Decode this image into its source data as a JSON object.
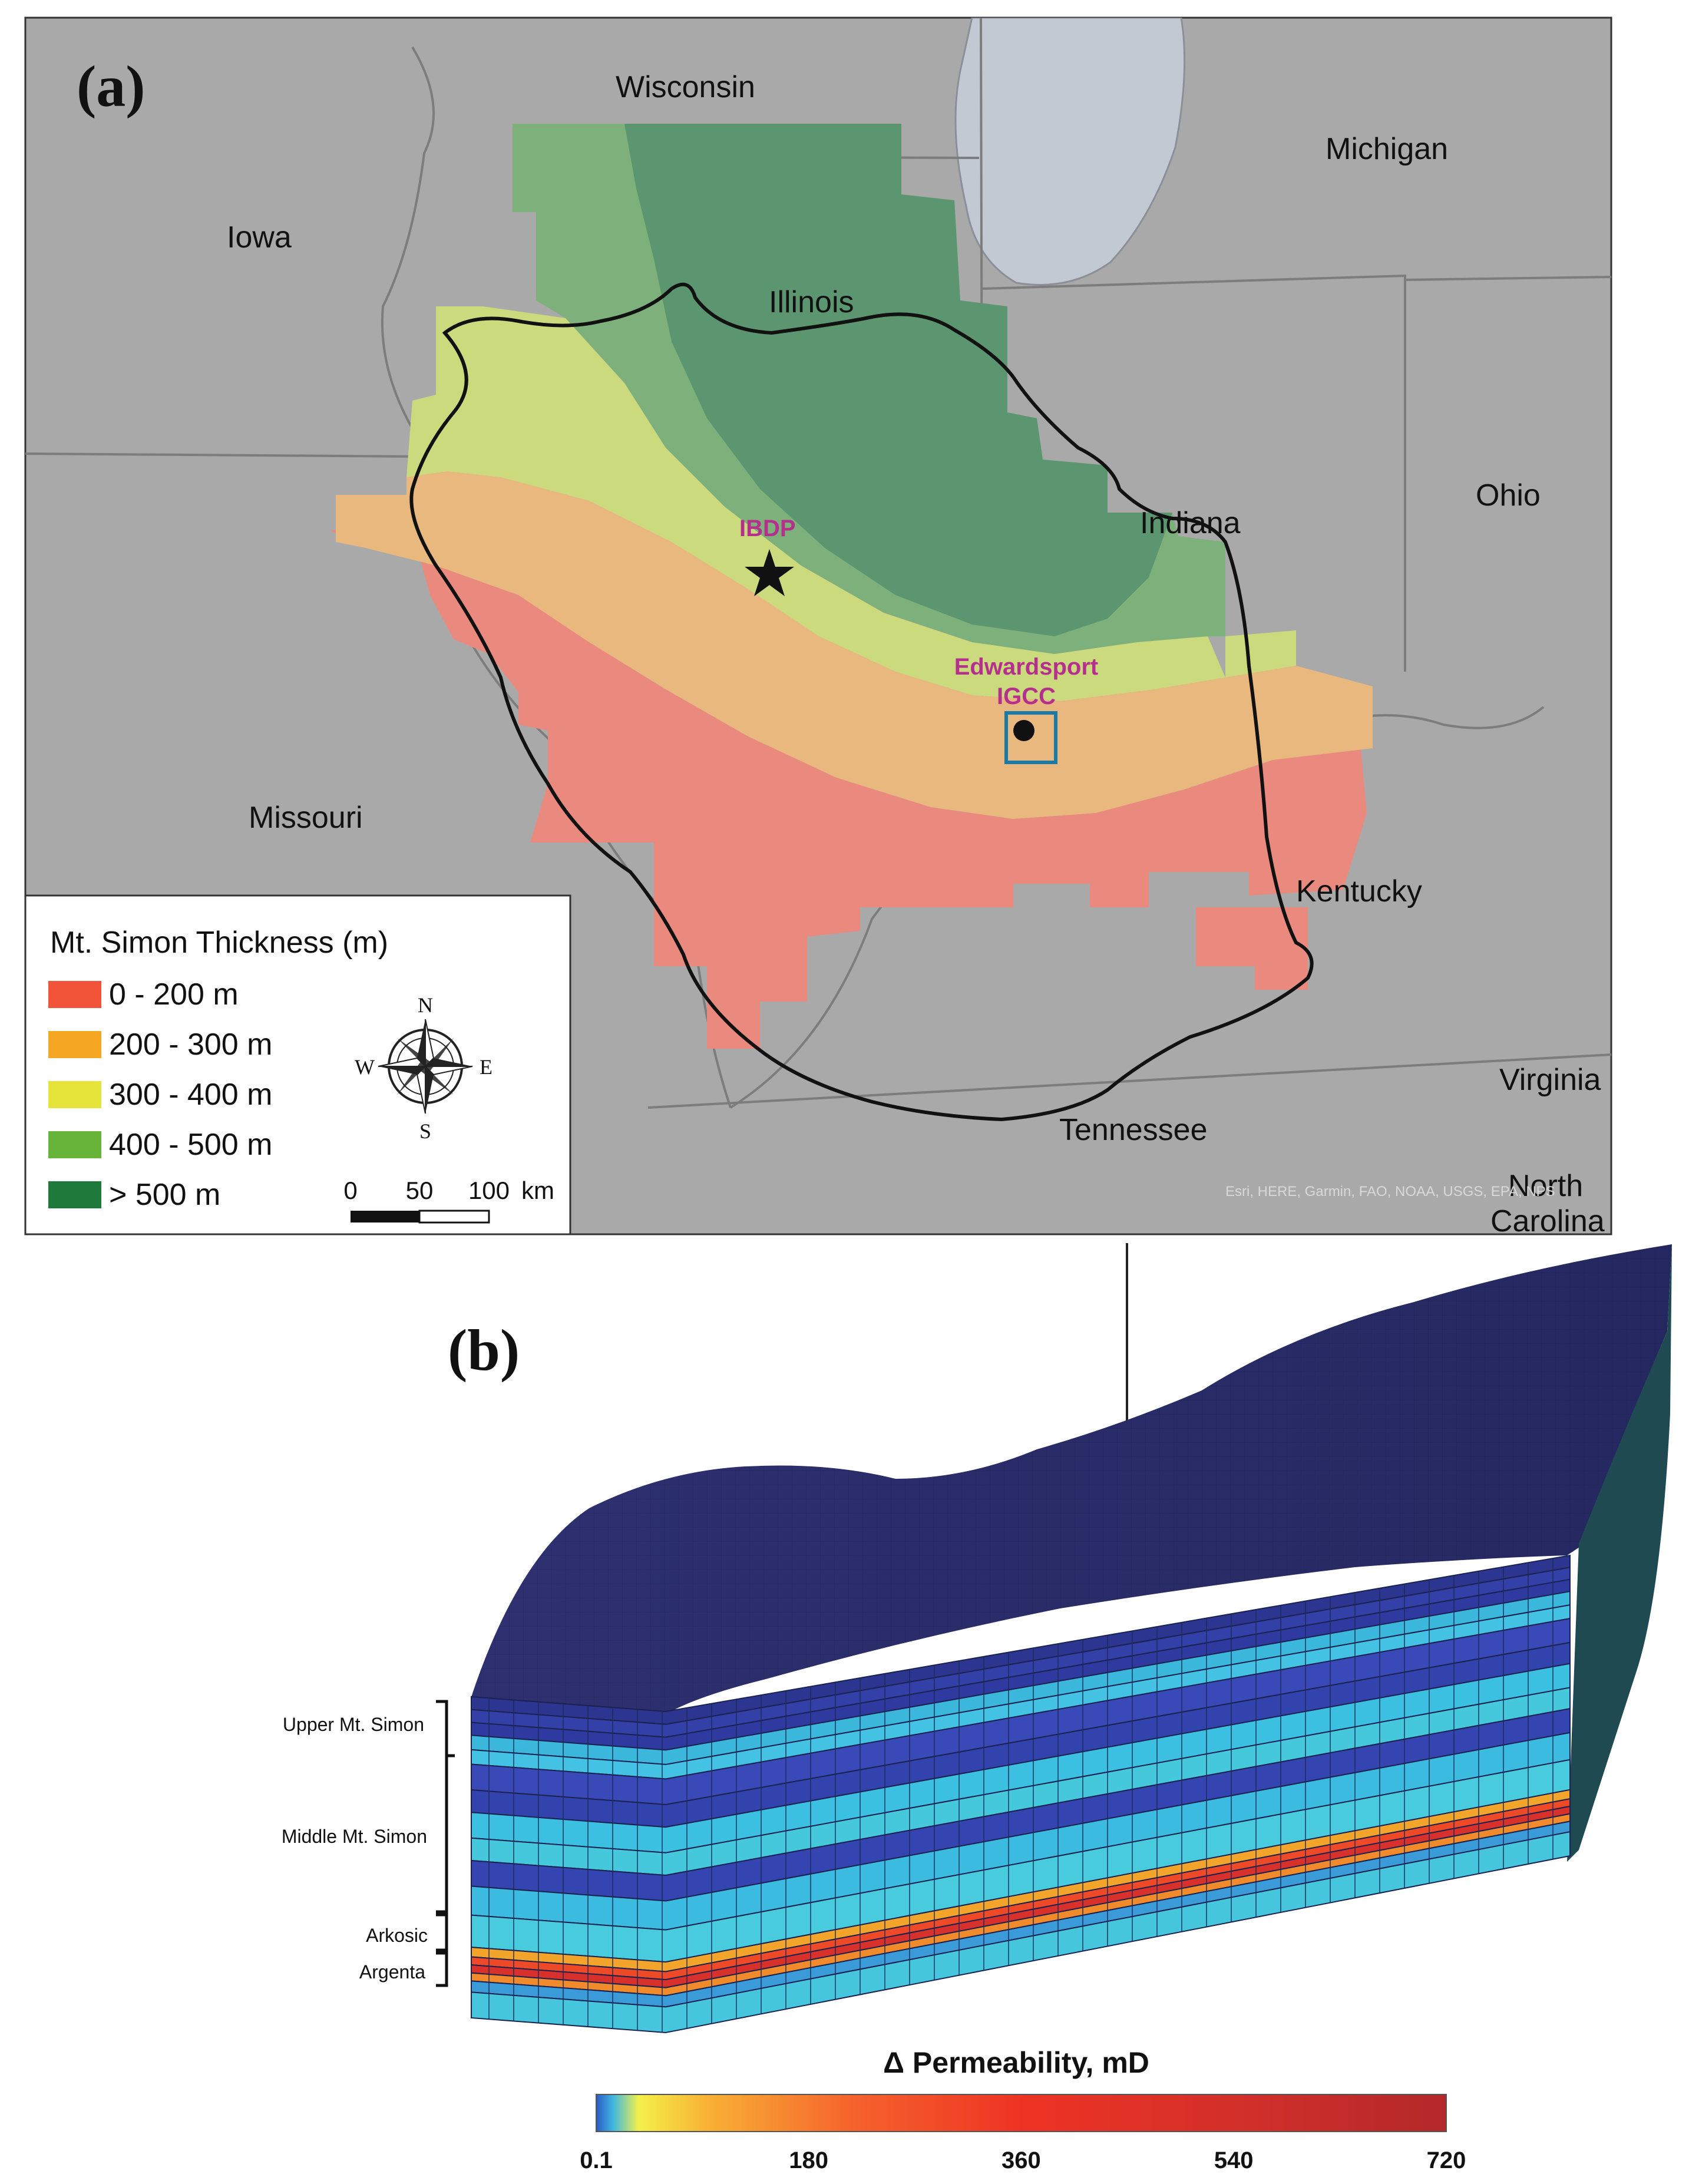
{
  "panel_a": {
    "label": "(a)",
    "states": {
      "wisconsin": "Wisconsin",
      "michigan": "Michigan",
      "iowa": "Iowa",
      "illinois": "Illinois",
      "ohio": "Ohio",
      "indiana": "Indiana",
      "missouri": "Missouri",
      "kentucky": "Kentucky",
      "virginia": "Virginia",
      "tennessee": "Tennessee",
      "north_carolina_1": "North",
      "north_carolina_2": "Carolina"
    },
    "sites": {
      "ibdp": "IBDP",
      "edwardsport_1": "Edwardsport",
      "edwardsport_2": "IGCC"
    },
    "site_color": "#b5308c",
    "attribution": "Esri, HERE, Garmin, FAO, NOAA, USGS, EPA, NPS",
    "legend": {
      "title": "Mt. Simon Thickness (m)",
      "items": [
        {
          "label": "0 - 200 m",
          "color": "#f2543a"
        },
        {
          "label": "200 - 300 m",
          "color": "#f5a623"
        },
        {
          "label": "300 - 400 m",
          "color": "#e6e43a"
        },
        {
          "label": "400 - 500 m",
          "color": "#68b43a"
        },
        {
          "label": "> 500 m",
          "color": "#1d7a3a"
        }
      ]
    },
    "compass": {
      "n": "N",
      "s": "S",
      "e": "E",
      "w": "W"
    },
    "scale_bar": {
      "ticks": [
        "0",
        "50",
        "100"
      ],
      "unit": "km"
    }
  },
  "panel_b": {
    "label": "(b)",
    "layers": {
      "upper": "Upper Mt. Simon",
      "middle": "Middle Mt. Simon",
      "arkosic": "Arkosic",
      "argenta": "Argenta"
    },
    "colorbar": {
      "title": "Δ Permeability, mD",
      "ticks": [
        "0.1",
        "180",
        "360",
        "540",
        "720"
      ],
      "min": 0.1,
      "max": 720
    }
  }
}
